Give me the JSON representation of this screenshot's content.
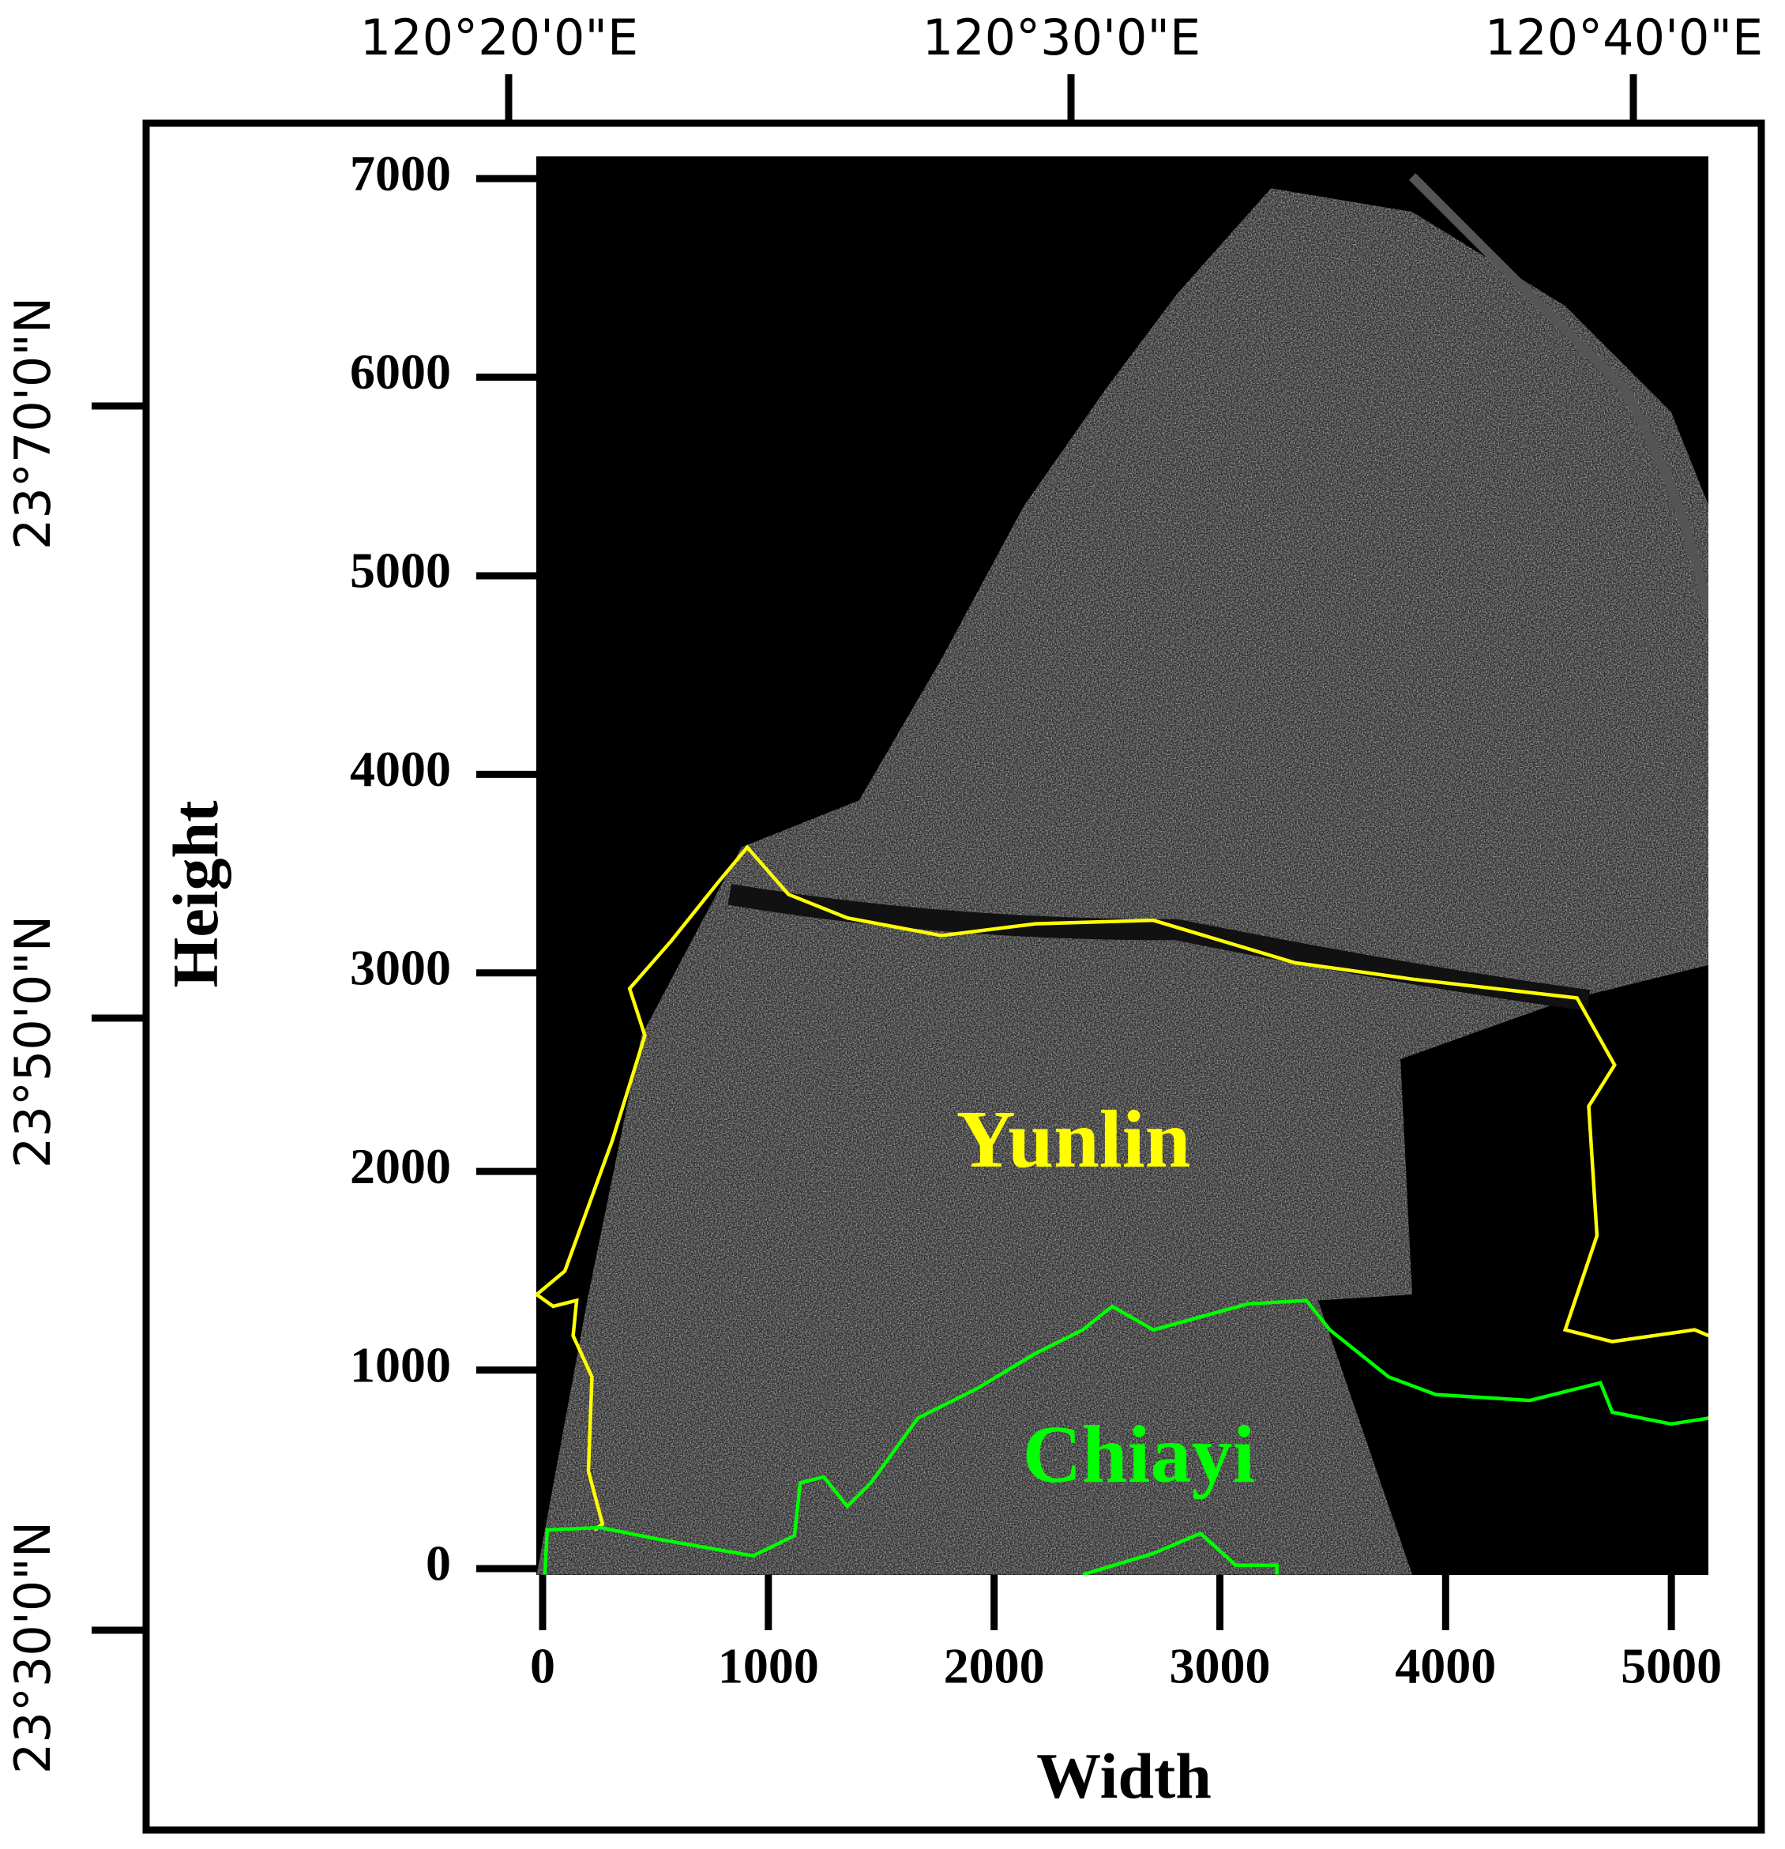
{
  "map": {
    "lon_labels": [
      "120°20'0\"E",
      "120°30'0\"E",
      "120°40'0\"E"
    ],
    "lat_labels": [
      "23°70'0\"N",
      "23°50'0\"N",
      "23°30'0\"N"
    ],
    "x_axis": {
      "label": "Width",
      "lim": [
        0,
        5150
      ],
      "ticks": [
        0,
        1000,
        2000,
        3000,
        4000,
        5000
      ]
    },
    "y_axis": {
      "label": "Height",
      "lim": [
        0,
        7100
      ],
      "ticks": [
        0,
        1000,
        2000,
        3000,
        4000,
        5000,
        6000,
        7000
      ]
    },
    "regions": [
      {
        "label": "Yunlin",
        "color": "#ffff00"
      },
      {
        "label": "Chiayi",
        "color": "#00ff00"
      }
    ]
  }
}
